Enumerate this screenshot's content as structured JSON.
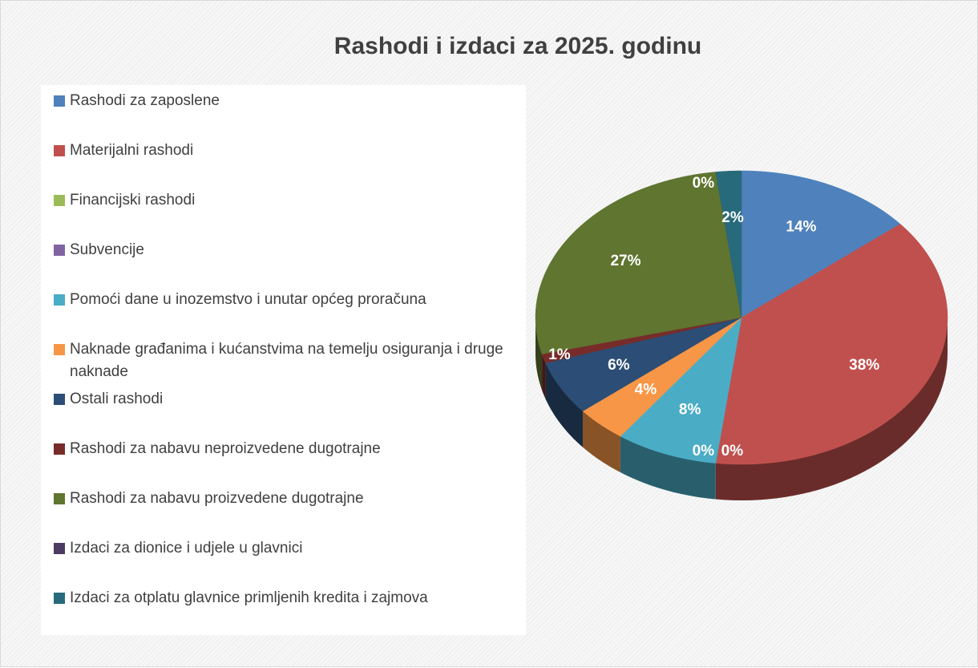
{
  "chart_data": {
    "type": "pie",
    "title": "Rashodi i izdaci za 2025. godinu",
    "categories": [
      "Rashodi za zaposlene",
      "Materijalni rashodi",
      "Financijski rashodi",
      "Subvencije",
      "Pomoći dane u inozemstvo i unutar općeg proračuna",
      "Naknade građanima i kućanstvima na temelju osiguranja i druge naknade",
      "Ostali rashodi",
      "Rashodi za nabavu neproizvedene dugotrajne",
      "Rashodi za nabavu proizvedene dugotrajne",
      "Izdaci za dionice i udjele u glavnici",
      "Izdaci za otplatu glavnice primljenih kredita i zajmova"
    ],
    "values": [
      14,
      38,
      0,
      0,
      8,
      4,
      6,
      1,
      27,
      0,
      2
    ],
    "value_labels": [
      "14%",
      "38%",
      "0%",
      "0%",
      "8%",
      "4%",
      "6%",
      "1%",
      "27%",
      "0%",
      "2%"
    ],
    "colors": [
      "#4f81bd",
      "#c0504d",
      "#9bbb59",
      "#8064a2",
      "#4bacc6",
      "#f79646",
      "#2c4d75",
      "#772c2a",
      "#5f7530",
      "#4d3b62",
      "#276a7c"
    ],
    "legend": "left"
  }
}
